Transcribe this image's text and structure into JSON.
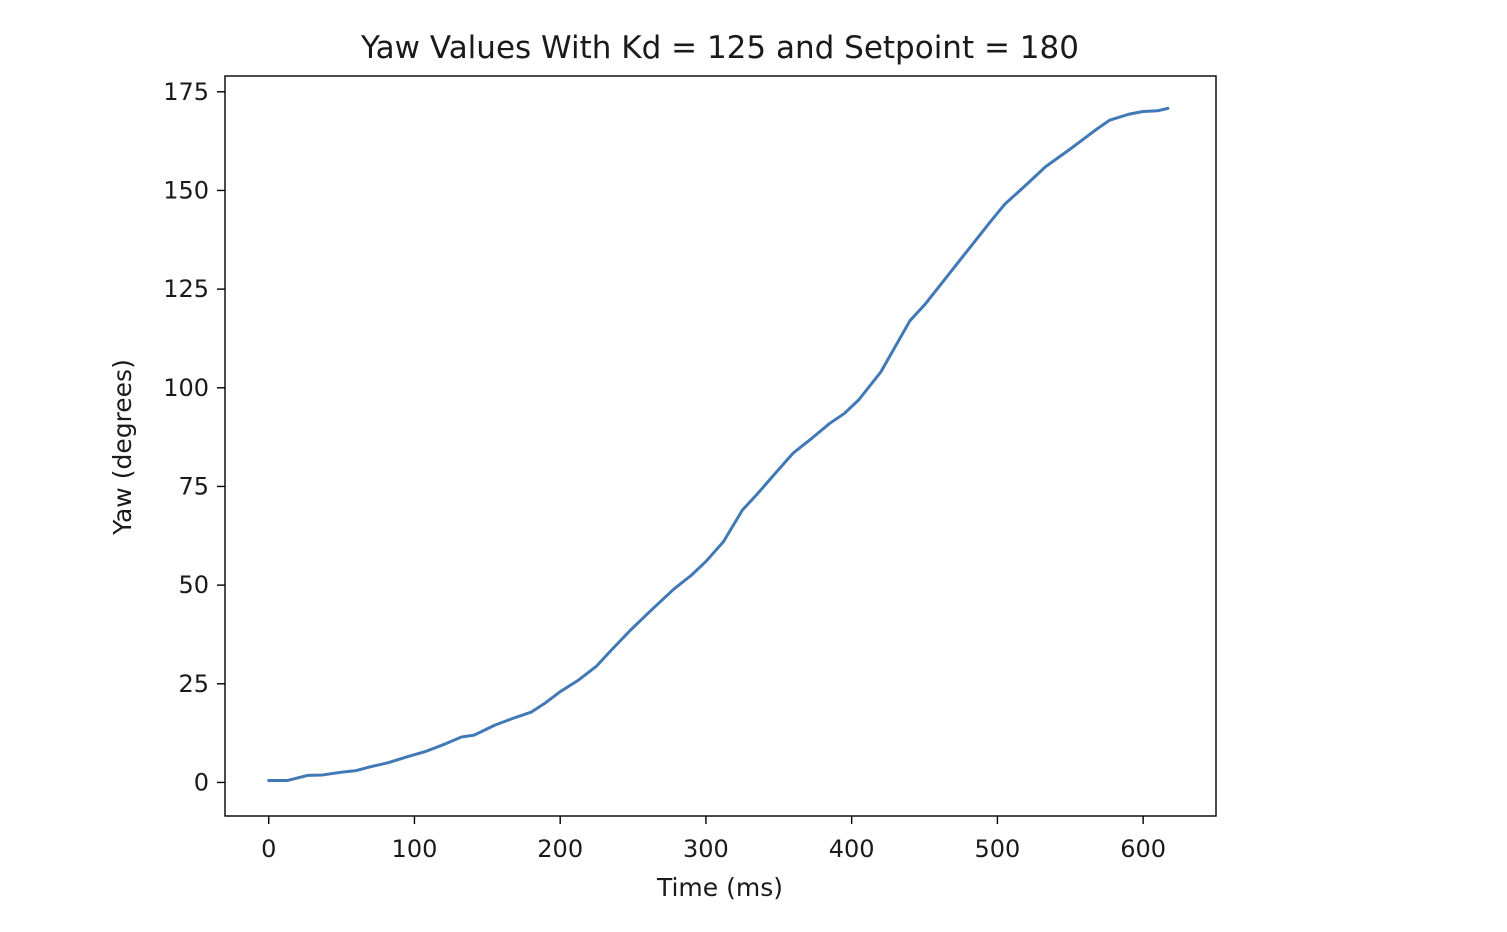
{
  "chart_data": {
    "type": "line",
    "title": "Yaw Values With Kd = 125 and Setpoint = 180",
    "xlabel": "Time (ms)",
    "ylabel": "Yaw (degrees)",
    "xlim": [
      -30,
      650
    ],
    "ylim": [
      -8.5,
      179
    ],
    "xticks": [
      0,
      100,
      200,
      300,
      400,
      500,
      600
    ],
    "yticks": [
      0,
      25,
      50,
      75,
      100,
      125,
      150,
      175
    ],
    "xtick_labels": [
      "0",
      "100",
      "200",
      "300",
      "400",
      "500",
      "600"
    ],
    "ytick_labels": [
      "0",
      "25",
      "50",
      "75",
      "100",
      "125",
      "150",
      "175"
    ],
    "grid": false,
    "series": [
      {
        "color": "#4178b6",
        "x": [
          0,
          13,
          27,
          37,
          50,
          60,
          70,
          82,
          95,
          108,
          120,
          132,
          141,
          155,
          168,
          180,
          190,
          200,
          212,
          225,
          235,
          248,
          262,
          278,
          290,
          300,
          312,
          325,
          335,
          348,
          360,
          372,
          385,
          395,
          405,
          420,
          440,
          450,
          465,
          480,
          495,
          505,
          520,
          533,
          550,
          568,
          577,
          590,
          600,
          610,
          617
        ],
        "y": [
          0.5,
          0.5,
          1.8,
          1.9,
          2.6,
          3.0,
          4.0,
          5.0,
          6.5,
          7.9,
          9.6,
          11.5,
          12.0,
          14.5,
          16.3,
          17.8,
          20.2,
          23.0,
          25.8,
          29.5,
          33.5,
          38.5,
          43.5,
          49.0,
          52.5,
          56.0,
          61.0,
          69.0,
          73.0,
          78.5,
          83.5,
          87.0,
          91.0,
          93.5,
          97.0,
          104.0,
          117.0,
          121.0,
          128.0,
          135.0,
          142.0,
          146.5,
          151.5,
          156.0,
          160.5,
          165.5,
          167.8,
          169.3,
          170.0,
          170.2,
          170.8
        ]
      }
    ]
  }
}
